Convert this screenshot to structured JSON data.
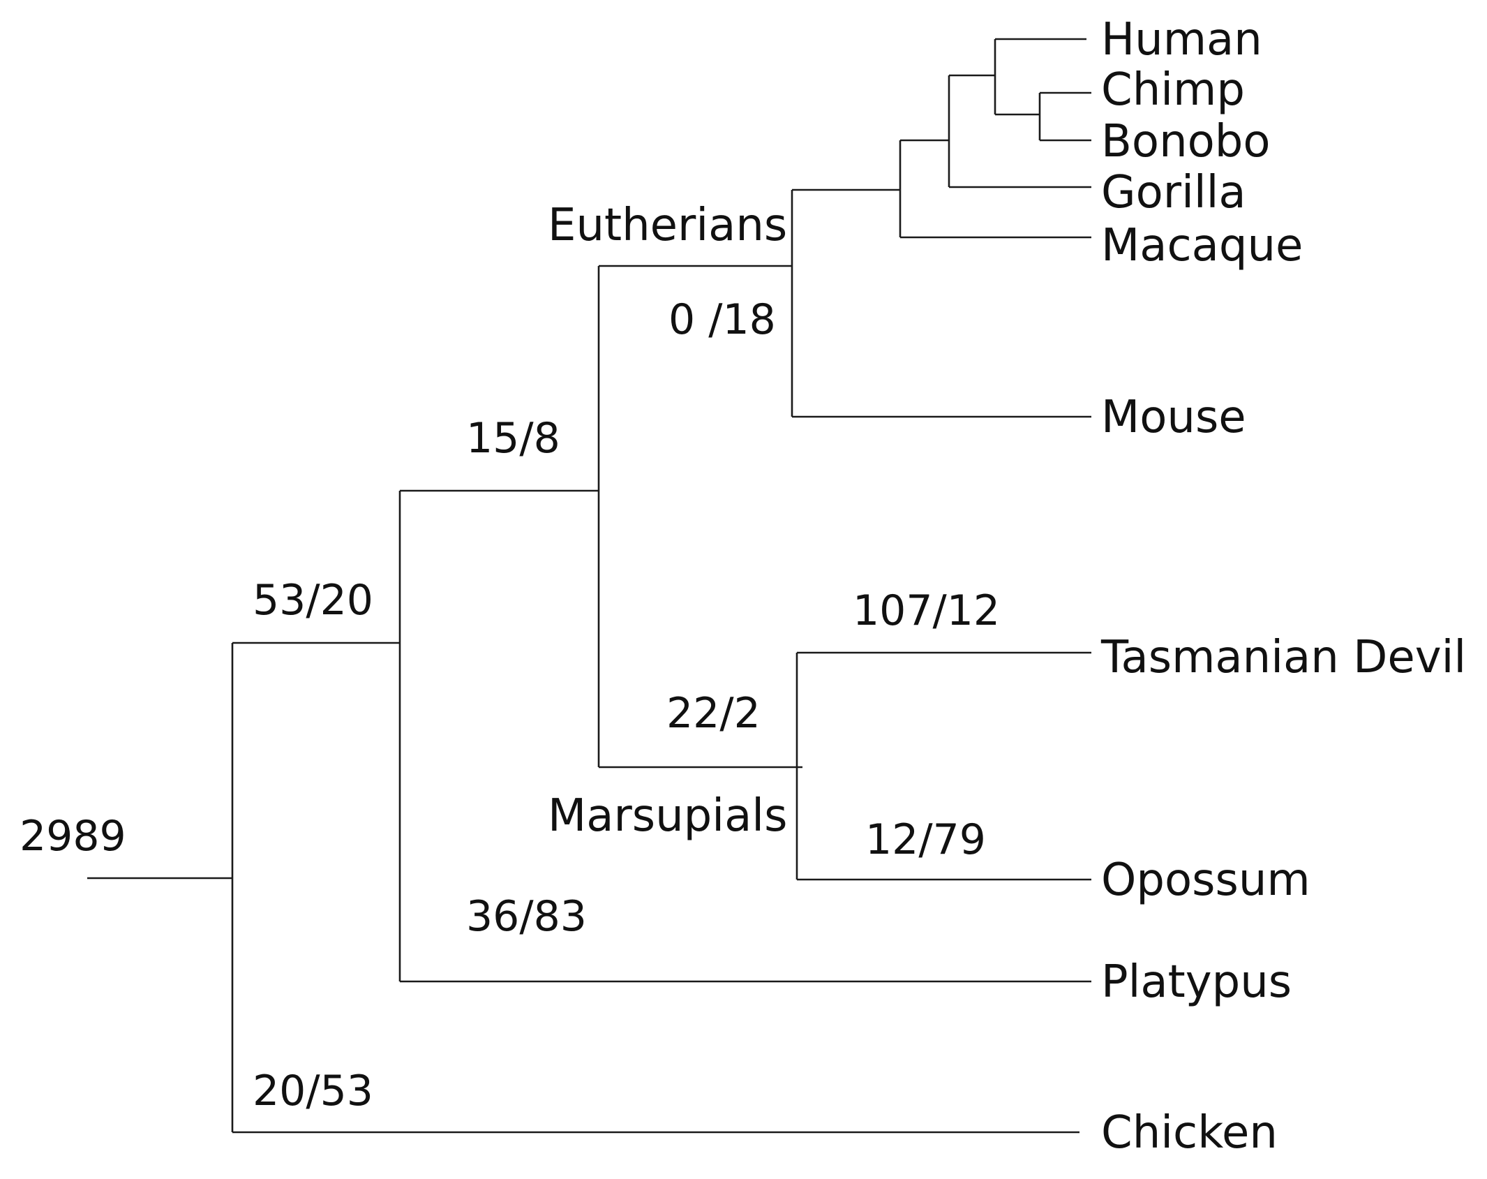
{
  "leaves": {
    "human": "Human",
    "chimp": "Chimp",
    "bonobo": "Bonobo",
    "gorilla": "Gorilla",
    "macaque": "Macaque",
    "mouse": "Mouse",
    "tasmanian_devil": "Tasmanian Devil",
    "opossum": "Opossum",
    "platypus": "Platypus",
    "chicken": "Chicken"
  },
  "clades": {
    "eutherians": "Eutherians",
    "marsupials": "Marsupials"
  },
  "branch_labels": {
    "root": "2989",
    "mammals": "53/20",
    "therians": "15/8",
    "eutherians": "0 /18",
    "marsupials": "22/2",
    "tasmanian_devil": "107/12",
    "opossum": "12/79",
    "platypus": "36/83",
    "chicken": "20/53"
  }
}
